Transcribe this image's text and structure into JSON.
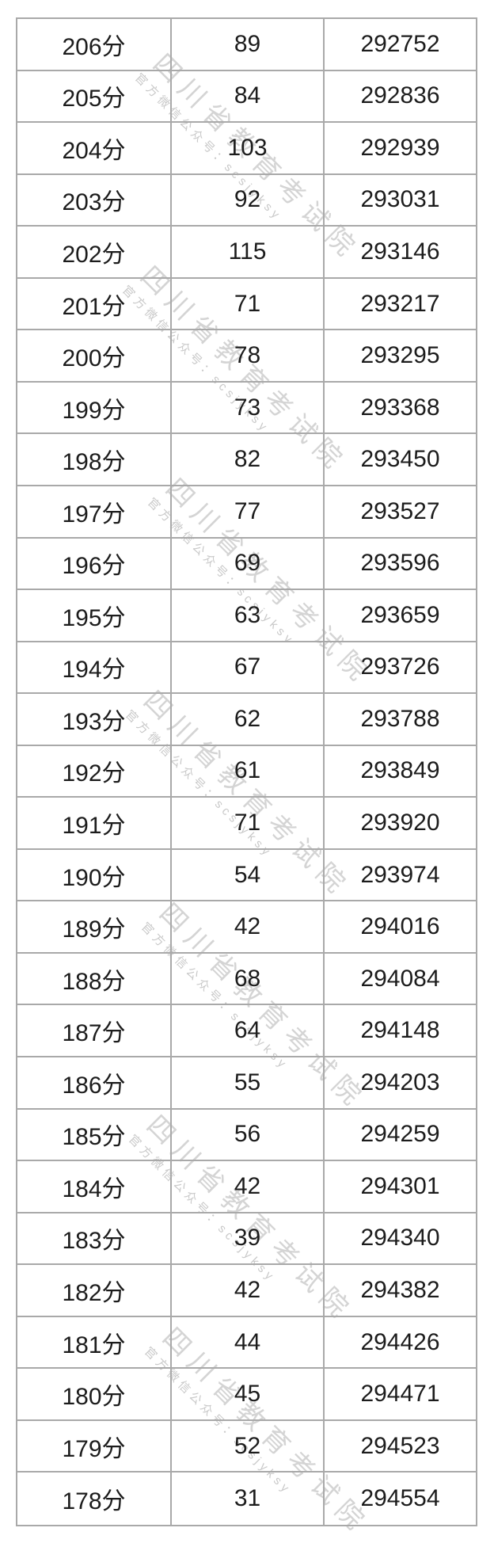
{
  "page": {
    "background": "#ffffff",
    "text_color": "#1c1c1c",
    "border_color": "#a9a9a9"
  },
  "watermark": {
    "title": "四川省教育考试院",
    "subtitle": "官方微信公众号：scsjyksy",
    "title_color": "#d4d4d4",
    "subtitle_color": "#c9c9c9"
  },
  "table": {
    "columns": [
      "score",
      "count",
      "cumulative_total"
    ],
    "rows": [
      [
        "206分",
        "89",
        "292752"
      ],
      [
        "205分",
        "84",
        "292836"
      ],
      [
        "204分",
        "103",
        "292939"
      ],
      [
        "203分",
        "92",
        "293031"
      ],
      [
        "202分",
        "115",
        "293146"
      ],
      [
        "201分",
        "71",
        "293217"
      ],
      [
        "200分",
        "78",
        "293295"
      ],
      [
        "199分",
        "73",
        "293368"
      ],
      [
        "198分",
        "82",
        "293450"
      ],
      [
        "197分",
        "77",
        "293527"
      ],
      [
        "196分",
        "69",
        "293596"
      ],
      [
        "195分",
        "63",
        "293659"
      ],
      [
        "194分",
        "67",
        "293726"
      ],
      [
        "193分",
        "62",
        "293788"
      ],
      [
        "192分",
        "61",
        "293849"
      ],
      [
        "191分",
        "71",
        "293920"
      ],
      [
        "190分",
        "54",
        "293974"
      ],
      [
        "189分",
        "42",
        "294016"
      ],
      [
        "188分",
        "68",
        "294084"
      ],
      [
        "187分",
        "64",
        "294148"
      ],
      [
        "186分",
        "55",
        "294203"
      ],
      [
        "185分",
        "56",
        "294259"
      ],
      [
        "184分",
        "42",
        "294301"
      ],
      [
        "183分",
        "39",
        "294340"
      ],
      [
        "182分",
        "42",
        "294382"
      ],
      [
        "181分",
        "44",
        "294426"
      ],
      [
        "180分",
        "45",
        "294471"
      ],
      [
        "179分",
        "52",
        "294523"
      ],
      [
        "178分",
        "31",
        "294554"
      ]
    ]
  }
}
